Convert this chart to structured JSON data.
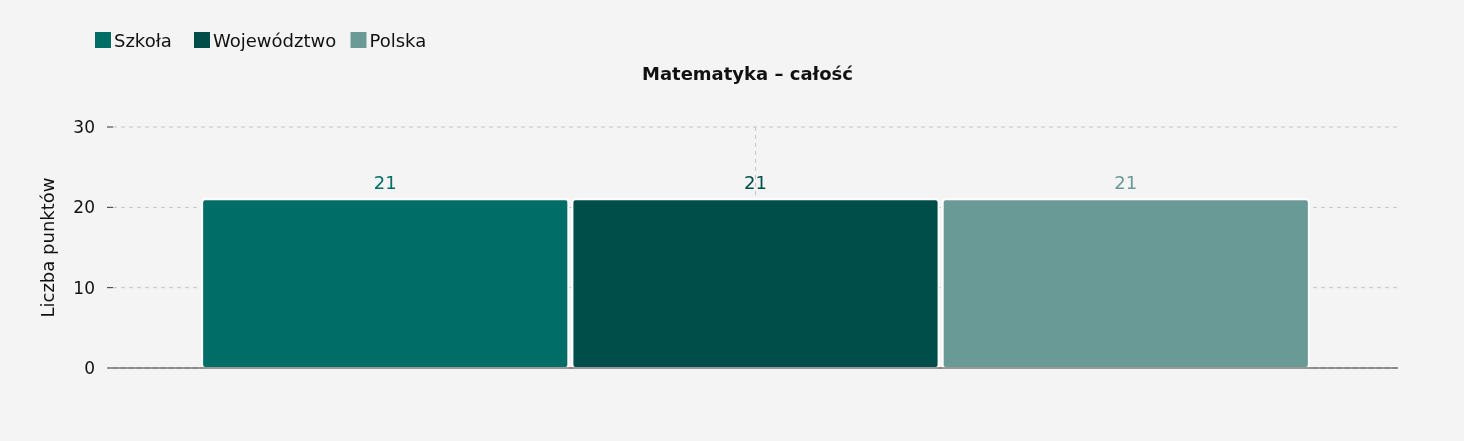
{
  "chart_data": {
    "type": "bar",
    "title": "Matematyka – całość",
    "ylabel": "Liczba punktów",
    "categories": [
      null
    ],
    "series": [
      {
        "name": "Szkoła",
        "color": "#006e66",
        "values": [
          21
        ]
      },
      {
        "name": "Województwo",
        "color": "#004e4a",
        "values": [
          21
        ]
      },
      {
        "name": "Polska",
        "color": "#6a9a95",
        "values": [
          21
        ]
      }
    ],
    "ylim": [
      0,
      30
    ],
    "yticks": [
      0,
      10,
      20,
      30
    ],
    "grid": true,
    "legend": "top left",
    "data_labels": true
  }
}
